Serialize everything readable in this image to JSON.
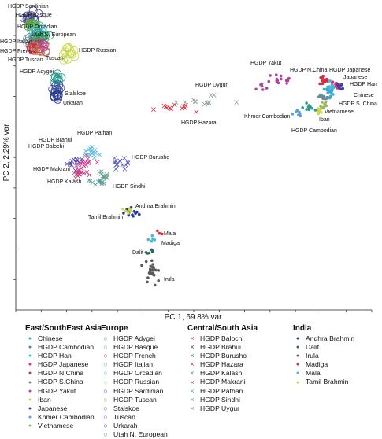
{
  "chart_data": {
    "type": "scatter",
    "title": "",
    "xlabel": "PC 1, 69.8% var",
    "ylabel": "PC 2, 2.29% var",
    "grid": false,
    "legend_placement": "bottom",
    "x_ticks": 15,
    "y_ticks": 9,
    "groups": [
      {
        "name": "East/SouthEast Asia",
        "series": [
          {
            "name": "Chinese",
            "marker": "dot",
            "color": "#3fa8c8"
          },
          {
            "name": "HGDP Cambodian",
            "marker": "dot",
            "color": "#2f9a8a"
          },
          {
            "name": "HGDP Han",
            "marker": "dot",
            "color": "#49b8d8"
          },
          {
            "name": "HGDP Japanese",
            "marker": "dot",
            "color": "#e0307a"
          },
          {
            "name": "HGDP N.China",
            "marker": "dot",
            "color": "#d42c40"
          },
          {
            "name": "HGDP S.China",
            "marker": "dot",
            "color": "#6a8a9a"
          },
          {
            "name": "HGDP Yakut",
            "marker": "dot",
            "color": "#b0469a"
          },
          {
            "name": "Iban",
            "marker": "dot",
            "color": "#c8d84a"
          },
          {
            "name": "Japanese",
            "marker": "dot",
            "color": "#4a3fa0"
          },
          {
            "name": "Khmer Cambodian",
            "marker": "dot",
            "color": "#5aa0d8"
          },
          {
            "name": "Vietnamese",
            "marker": "dot",
            "color": "#9ab85a"
          }
        ]
      },
      {
        "name": "Europe",
        "series": [
          {
            "name": "HGDP Adygei",
            "marker": "circle",
            "color": "#2a9a8a"
          },
          {
            "name": "HGDP Basque",
            "marker": "circle",
            "color": "#5aaa3a"
          },
          {
            "name": "HGDP French",
            "marker": "circle",
            "color": "#d42c40"
          },
          {
            "name": "HGDP Italian",
            "marker": "circle",
            "color": "#6a8a9a"
          },
          {
            "name": "HGDP Orcadian",
            "marker": "circle",
            "color": "#49b8d8"
          },
          {
            "name": "HGDP Russian",
            "marker": "circle",
            "color": "#c8d84a"
          },
          {
            "name": "HGDP Sardinian",
            "marker": "circle",
            "color": "#4a3fa0"
          },
          {
            "name": "HGDP Tuscan",
            "marker": "circle",
            "color": "#c88a3a"
          },
          {
            "name": "Stalskoe",
            "marker": "circle",
            "color": "#3a4aa0"
          },
          {
            "name": "Tuscan",
            "marker": "circle",
            "color": "#b0469a"
          },
          {
            "name": "Urkarah",
            "marker": "circle",
            "color": "#2a3a90"
          },
          {
            "name": "Utah N. European",
            "marker": "circle",
            "color": "#2f9a5a"
          }
        ]
      },
      {
        "name": "Central/South Asia",
        "series": [
          {
            "name": "HGDP Balochi",
            "marker": "x",
            "color": "#d83a8a"
          },
          {
            "name": "HGDP Brahui",
            "marker": "x",
            "color": "#4a3fa0"
          },
          {
            "name": "HGDP Burusho",
            "marker": "x",
            "color": "#5a5ab8"
          },
          {
            "name": "HGDP Hazara",
            "marker": "x",
            "color": "#d42c40"
          },
          {
            "name": "HGDP Kalash",
            "marker": "x",
            "color": "#5a9a9a"
          },
          {
            "name": "HGDP Makrani",
            "marker": "x",
            "color": "#c8387a"
          },
          {
            "name": "HGDP Pathan",
            "marker": "x",
            "color": "#49b8d8"
          },
          {
            "name": "HGDP Sindhi",
            "marker": "x",
            "color": "#6aa08a"
          },
          {
            "name": "HGDP Uygur",
            "marker": "x",
            "color": "#8a9aa0"
          }
        ]
      },
      {
        "name": "India",
        "series": [
          {
            "name": "Andhra Brahmin",
            "marker": "dot",
            "color": "#2a3a9a"
          },
          {
            "name": "Dalit",
            "marker": "dot",
            "color": "#2a6a5a"
          },
          {
            "name": "Irula",
            "marker": "dot",
            "color": "#5a5a5a"
          },
          {
            "name": "Madiga",
            "marker": "dot",
            "color": "#d42c40"
          },
          {
            "name": "Mala",
            "marker": "dot",
            "color": "#49b8d8"
          },
          {
            "name": "Tamil Brahmin",
            "marker": "dot",
            "color": "#c8d84a"
          }
        ]
      }
    ],
    "annotations": [
      "HGDP Sardinian",
      "HGDP Basque",
      "HGDP Orcadian",
      "HGDP Italian",
      "Utah N. European",
      "HGDP French",
      "HGDP Russian",
      "HGDP Tuscan",
      "Tuscan",
      "HGDP Adygei",
      "Stalskoe",
      "Urkarah",
      "HGDP Yakut",
      "HGDP N.China",
      "HGDP Japanese",
      "Japanese",
      "HGDP Han",
      "Chinese",
      "HGDP S. China",
      "HGDP Uygur",
      "HGDP Hazara",
      "Khmer Cambodian",
      "Iban",
      "Vietnamese",
      "HGDP Cambodian",
      "HGDP Pathan",
      "HGDP Brahui",
      "HGDP Balochi",
      "HGDP Burusho",
      "HGDP Makrani",
      "HGDP Kalash",
      "HGDP Sindhi",
      "Andhra Brahmin",
      "Tamil Brahmin",
      "Mala",
      "Madiga",
      "Dalit",
      "Irula"
    ]
  }
}
